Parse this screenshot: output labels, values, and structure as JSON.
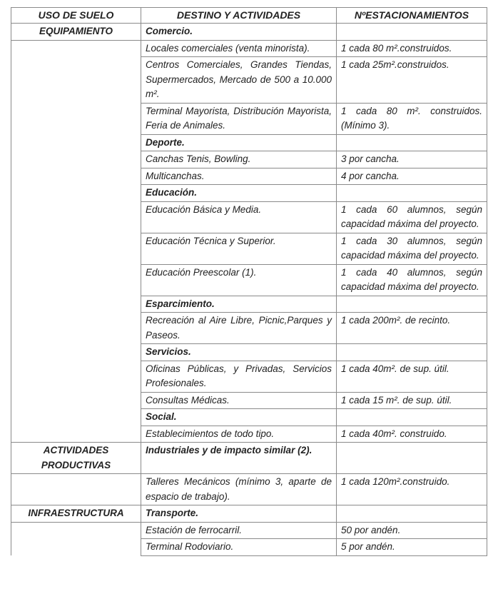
{
  "headers": [
    "USO DE SUELO",
    "DESTINO Y ACTIVIDADES",
    "NºESTACIONAMIENTOS"
  ],
  "groups": [
    {
      "uso": "EQUIPAMIENTO",
      "rows": [
        {
          "destino": "Comercio.",
          "heading": true,
          "estac": ""
        },
        {
          "destino": "Locales comerciales (venta minorista).",
          "estac": "1 cada 80 m².construidos."
        },
        {
          "destino": "Centros Comerciales, Grandes Tiendas, Supermercados, Mercado de 500 a 10.000 m².",
          "estac": "1 cada 25m².construidos."
        },
        {
          "destino": "Terminal Mayorista, Distribución Mayorista, Feria de Animales.",
          "estac": "1 cada 80 m². construidos. (Mínimo 3)."
        },
        {
          "destino": "Deporte.",
          "heading": true,
          "estac": ""
        },
        {
          "destino": "Canchas Tenis, Bowling.",
          "estac": "3 por cancha."
        },
        {
          "destino": "Multicanchas.",
          "estac": "4 por cancha."
        },
        {
          "destino": "Educación.",
          "heading": true,
          "estac": ""
        },
        {
          "destino": "Educación Básica y Media.",
          "estac": "1 cada 60 alumnos, según capacidad máxima del proyecto."
        },
        {
          "destino": "Educación Técnica y Superior.",
          "estac": "1 cada 30 alumnos, según capacidad máxima del proyecto."
        },
        {
          "destino": "Educación Preescolar (1).",
          "estac": "1 cada 40 alumnos, según capacidad máxima del proyecto."
        },
        {
          "destino": "Esparcimiento.",
          "heading": true,
          "estac": ""
        },
        {
          "destino": "Recreación al Aire Libre, Picnic,Parques y Paseos.",
          "estac": "1 cada 200m². de recinto."
        },
        {
          "destino": "Servicios.",
          "heading": true,
          "estac": ""
        },
        {
          "destino": "Oficinas Públicas, y Privadas, Servicios Profesionales.",
          "estac": "1 cada 40m². de sup. útil."
        },
        {
          "destino": "Consultas Médicas.",
          "estac": "1 cada 15 m². de sup. útil."
        },
        {
          "destino": "Social.",
          "heading": true,
          "estac": ""
        },
        {
          "destino": "Establecimientos de todo tipo.",
          "estac": "1 cada 40m². construido."
        }
      ]
    },
    {
      "uso": "ACTIVIDADES PRODUCTIVAS",
      "rows": [
        {
          "destino": "Industriales y de impacto similar (2).",
          "heading": true,
          "estac": ""
        },
        {
          "destino": "Talleres Mecánicos (mínimo 3, aparte de espacio de trabajo).",
          "estac": "1 cada 120m².construido."
        }
      ]
    },
    {
      "uso": "INFRAESTRUCTURA",
      "rows": [
        {
          "destino": "Transporte.",
          "heading": true,
          "estac": ""
        },
        {
          "destino": "Estación de ferrocarril.",
          "estac": "50 por andén."
        },
        {
          "destino": "Terminal Rodoviario.",
          "estac": "5 por andén."
        }
      ]
    }
  ]
}
